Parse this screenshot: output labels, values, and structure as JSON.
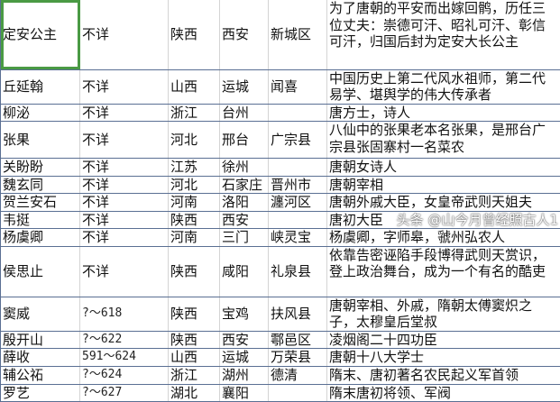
{
  "rows": [
    {
      "name": "定安公主",
      "years": "不详",
      "province": "陕西",
      "city": "西安",
      "county": "新城区",
      "desc": "为了唐朝的平安而出嫁回鹘，历任三位丈夫：崇德可汗、昭礼可汗、彰信可汗，归国后封为定安大长公主"
    },
    {
      "name": "丘延翰",
      "years": "不详",
      "province": "山西",
      "city": "运城",
      "county": "闻喜",
      "desc": "中国历史上第二代风水祖师，第二代易学、堪舆学的伟大传承者"
    },
    {
      "name": "柳泌",
      "years": "不详",
      "province": "浙江",
      "city": "台州",
      "county": "",
      "desc": "唐方士，诗人"
    },
    {
      "name": "张果",
      "years": "不详",
      "province": "河北",
      "city": "邢台",
      "county": "广宗县",
      "desc": "八仙中的张果老本名张果，是邢台广宗县张固寨村一名菜农"
    },
    {
      "name": "关盼盼",
      "years": "不详",
      "province": "江苏",
      "city": "徐州",
      "county": "",
      "desc": "唐朝女诗人"
    },
    {
      "name": "魏玄同",
      "years": "不详",
      "province": "河北",
      "city": "石家庄",
      "county": "晋州市",
      "desc": "唐朝宰相"
    },
    {
      "name": "贺兰安石",
      "years": "不详",
      "province": "河南",
      "city": "洛阳",
      "county": "瀍河区",
      "desc": "唐朝外戚大臣，女皇帝武则天姐夫"
    },
    {
      "name": "韦挺",
      "years": "不详",
      "province": "陕西",
      "city": "西安",
      "county": "",
      "desc": "唐初大臣"
    },
    {
      "name": "杨虞卿",
      "years": "不详",
      "province": "河南",
      "city": "三门",
      "county": "峡灵宝",
      "desc": "杨虞卿，字师皋，虢州弘农人"
    },
    {
      "name": "侯思止",
      "years": "不详",
      "province": "陕西",
      "city": "咸阳",
      "county": "礼泉县",
      "desc": "依靠告密诬陷手段博得武则天赏识，登上政治舞台，成为一个有名的酷吏"
    },
    {
      "name": "窦威",
      "years": "?～618",
      "province": "陕西",
      "city": "宝鸡",
      "county": "扶风县",
      "desc": "唐朝宰相、外戚，隋朝太傅窦炽之子，太穆皇后堂叔"
    },
    {
      "name": "殷开山",
      "years": "?～622",
      "province": "陕西",
      "city": "西安",
      "county": "鄠邑区",
      "desc": "凌烟阁二十四功臣"
    },
    {
      "name": "薛收",
      "years": "591～624",
      "province": "山西",
      "city": "运城",
      "county": "万荣县",
      "desc": "唐朝十八大学士"
    },
    {
      "name": "辅公祏",
      "years": "?～624",
      "province": "浙江",
      "city": "湖州",
      "county": "德清",
      "desc": "隋末、唐初著名农民起义军首领"
    },
    {
      "name": "罗艺",
      "years": "?～627",
      "province": "湖北",
      "city": "襄阳",
      "county": "",
      "desc": "隋末唐初将领、军阀"
    }
  ],
  "watermark": "头条 @山今月曾经照古人1",
  "colors": {
    "selection": "#4a9a44",
    "row_border": "#5a6f93"
  }
}
